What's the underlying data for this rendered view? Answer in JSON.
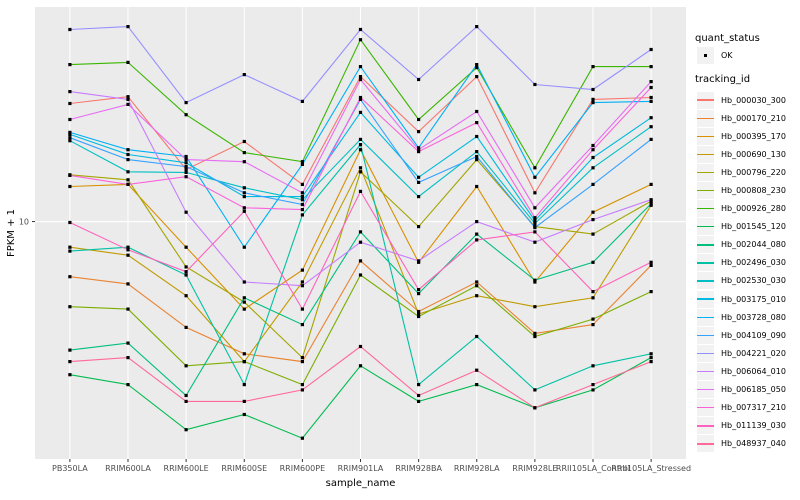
{
  "legend": {
    "quant_status_title": "quant_status",
    "quant_status_ok_label": "OK",
    "tracking_id_title": "tracking_id"
  },
  "colors": {
    "panel_bg": "#EBEBEB",
    "gridline": "#FFFFFF",
    "tick": "#333333",
    "tick_label": "#4D4D4D",
    "axis_title": "#000000",
    "point": "#000000",
    "legend_key_bg": "#F2F2F2"
  },
  "chart_data": {
    "type": "line",
    "title": "",
    "xlabel": "sample_name",
    "ylabel": "FPKM + 1",
    "y_scale": "log10",
    "ylim": [
      0.89,
      89
    ],
    "y_ticks": [
      10
    ],
    "grid": "white gridlines on gray panel, vertical line per category, horizontal at y=10",
    "legend_position": "right",
    "quant_status": "OK",
    "point_marker": "small black square",
    "categories": [
      "PB350LA",
      "RRIM600LA",
      "RRIM600LE",
      "RRIM600SE",
      "RRIM600PE",
      "RRIM901LA",
      "RRIM928BA",
      "RRIM928LA",
      "RRIM928LE",
      "RRII105LA_Control",
      "RRII105LA_Stressed"
    ],
    "series": [
      {
        "name": "Hb_000030_300",
        "color": "#F8766D",
        "values": [
          33.3,
          35.7,
          17.0,
          22.6,
          14.6,
          43.8,
          25.0,
          43.8,
          13.4,
          34.7,
          35.4
        ]
      },
      {
        "name": "Hb_000170_210",
        "color": "#EA8331",
        "values": [
          5.7,
          5.3,
          3.4,
          2.6,
          2.4,
          6.7,
          4.0,
          5.4,
          3.2,
          3.5,
          6.4
        ]
      },
      {
        "name": "Hb_000395_170",
        "color": "#D89000",
        "values": [
          14.3,
          14.6,
          7.7,
          4.1,
          6.1,
          20.8,
          6.6,
          14.3,
          5.4,
          11.0,
          14.6
        ]
      },
      {
        "name": "Hb_000690_130",
        "color": "#C09B00",
        "values": [
          7.7,
          7.1,
          4.7,
          2.4,
          5.4,
          17.3,
          3.9,
          4.7,
          4.2,
          4.6,
          11.8
        ]
      },
      {
        "name": "Hb_000796_220",
        "color": "#A3A500",
        "values": [
          16.1,
          15.3,
          6.3,
          4.4,
          2.5,
          16.6,
          9.5,
          18.8,
          9.5,
          8.8,
          12.3
        ]
      },
      {
        "name": "Hb_000808_230",
        "color": "#7CAE00",
        "values": [
          4.2,
          4.1,
          2.3,
          2.4,
          1.9,
          5.8,
          3.8,
          5.2,
          3.1,
          3.7,
          4.9
        ]
      },
      {
        "name": "Hb_000926_280",
        "color": "#39B600",
        "values": [
          49.5,
          50.6,
          29.7,
          20.2,
          18.4,
          63.8,
          28.3,
          48.0,
          17.3,
          48.5,
          48.5
        ]
      },
      {
        "name": "Hb_001545_120",
        "color": "#00BB4E",
        "values": [
          2.1,
          1.9,
          1.2,
          1.4,
          1.1,
          2.3,
          1.6,
          1.9,
          1.5,
          1.8,
          2.5
        ]
      },
      {
        "name": "Hb_002044_080",
        "color": "#00BF7D",
        "values": [
          2.7,
          2.9,
          1.7,
          4.6,
          3.5,
          9.0,
          4.8,
          8.8,
          5.5,
          6.6,
          12.0
        ]
      },
      {
        "name": "Hb_002496_030",
        "color": "#00C1A3",
        "values": [
          7.4,
          7.7,
          5.8,
          1.9,
          10.7,
          21.9,
          1.9,
          3.1,
          1.8,
          2.3,
          2.6
        ]
      },
      {
        "name": "Hb_002530_030",
        "color": "#00BFC4",
        "values": [
          22.8,
          16.6,
          16.5,
          14.1,
          12.5,
          23.1,
          12.9,
          20.4,
          9.8,
          17.3,
          26.3
        ]
      },
      {
        "name": "Hb_003175_010",
        "color": "#00BAE0",
        "values": [
          24.3,
          19.8,
          18.2,
          12.9,
          12.9,
          30.4,
          15.7,
          23.8,
          10.1,
          19.2,
          28.8
        ]
      },
      {
        "name": "Hb_003728_080",
        "color": "#00B0F6",
        "values": [
          24.8,
          20.8,
          19.4,
          7.7,
          17.9,
          48.5,
          21.2,
          49.5,
          15.7,
          33.6,
          34.0
        ]
      },
      {
        "name": "Hb_004109_090",
        "color": "#35A2FF",
        "values": [
          23.5,
          18.8,
          17.5,
          13.4,
          11.9,
          34.7,
          14.9,
          19.4,
          9.4,
          14.6,
          23.1
        ]
      },
      {
        "name": "Hb_004221_020",
        "color": "#9590FF",
        "values": [
          70.8,
          72.9,
          33.6,
          44.7,
          34.0,
          70.8,
          42.5,
          72.9,
          40.4,
          38.4,
          57.7
        ]
      },
      {
        "name": "Hb_006064_010",
        "color": "#C77CFF",
        "values": [
          37.6,
          34.7,
          11.0,
          5.4,
          5.2,
          8.1,
          6.7,
          10.0,
          8.1,
          10.2,
          12.5
        ]
      },
      {
        "name": "Hb_006185_050",
        "color": "#E76BF3",
        "values": [
          28.3,
          33.0,
          18.8,
          18.4,
          13.4,
          42.5,
          20.8,
          30.7,
          11.5,
          21.7,
          41.6
        ]
      },
      {
        "name": "Hb_007317_210",
        "color": "#FA62DB",
        "values": [
          16.0,
          14.6,
          15.8,
          11.5,
          11.3,
          35.4,
          20.4,
          27.4,
          10.4,
          20.8,
          39.2
        ]
      },
      {
        "name": "Hb_011139_030",
        "color": "#FF62BC",
        "values": [
          9.9,
          7.5,
          6.0,
          11.1,
          4.1,
          13.6,
          5.0,
          8.3,
          9.0,
          4.9,
          6.6
        ]
      },
      {
        "name": "Hb_048937_040",
        "color": "#FF6A98",
        "values": [
          2.4,
          2.5,
          1.6,
          1.6,
          1.8,
          2.8,
          1.7,
          2.2,
          1.5,
          1.9,
          2.4
        ]
      }
    ]
  }
}
